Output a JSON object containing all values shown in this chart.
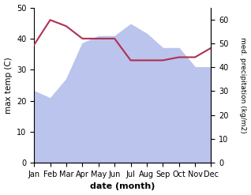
{
  "months": [
    "Jan",
    "Feb",
    "Mar",
    "Apr",
    "May",
    "Jun",
    "Jul",
    "Aug",
    "Sep",
    "Oct",
    "Nov",
    "Dec"
  ],
  "temperature": [
    38,
    46,
    44,
    40,
    40,
    40,
    33,
    33,
    33,
    34,
    34,
    37
  ],
  "precipitation": [
    30,
    27,
    35,
    50,
    53,
    53,
    58,
    54,
    48,
    48,
    40,
    40
  ],
  "temp_color": "#b03050",
  "precip_fill_color": "#bbc4ed",
  "xlabel": "date (month)",
  "ylabel_left": "max temp (C)",
  "ylabel_right": "med. precipitation (kg/m2)",
  "ylim_left": [
    0,
    50
  ],
  "ylim_right": [
    0,
    65
  ],
  "yticks_left": [
    0,
    10,
    20,
    30,
    40,
    50
  ],
  "yticks_right": [
    0,
    10,
    20,
    30,
    40,
    50,
    60
  ],
  "background_color": "#ffffff"
}
